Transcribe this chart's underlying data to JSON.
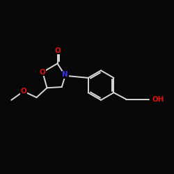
{
  "background_color": "#080808",
  "bond_color": "#d8d8d8",
  "atom_colors": {
    "O": "#dd1111",
    "N": "#3333ee",
    "C": "#d8d8d8"
  },
  "figsize": [
    2.5,
    2.5
  ],
  "dpi": 100,
  "lw": 1.4,
  "fontsize": 7.5
}
